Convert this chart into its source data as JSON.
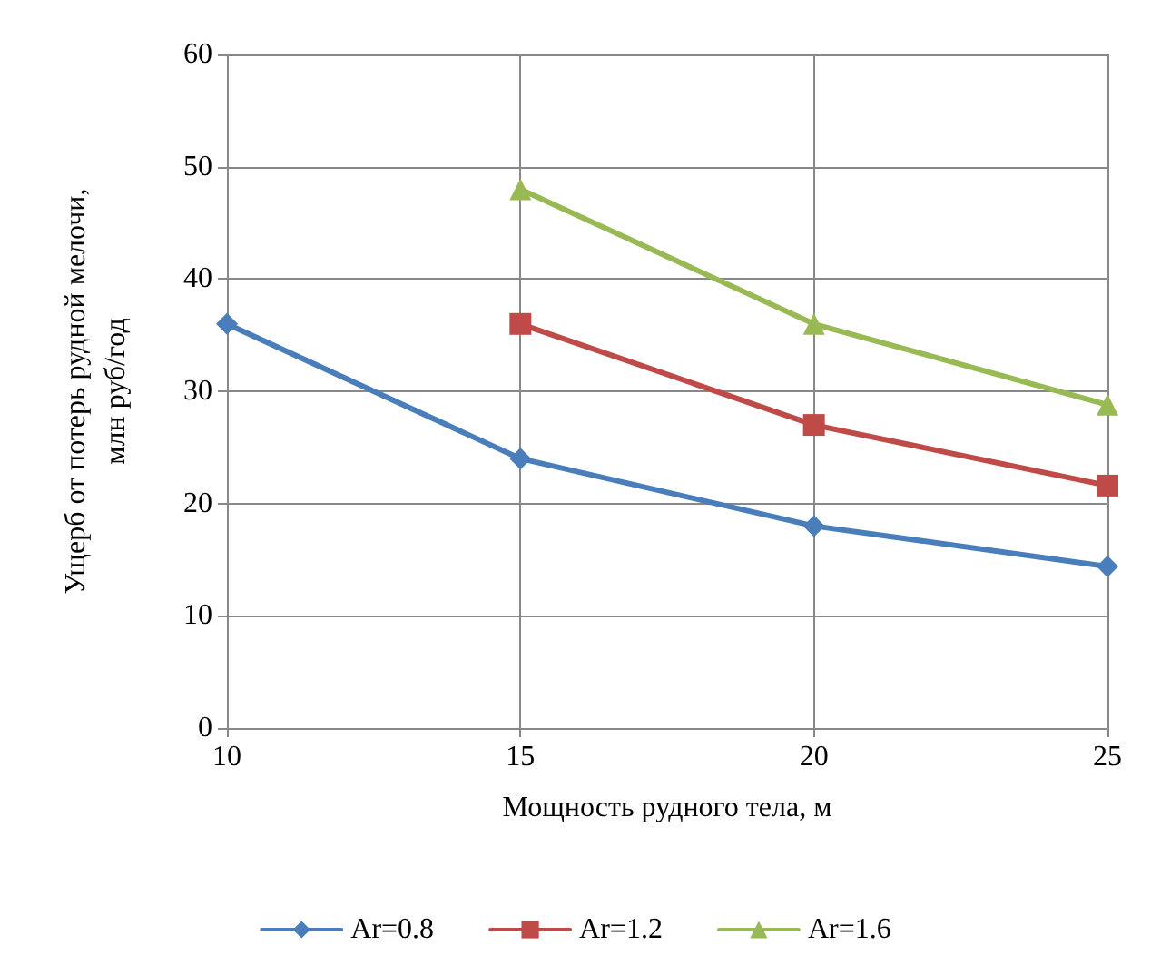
{
  "chart_data": {
    "type": "line",
    "xlabel": "Мощность рудного тела, м",
    "ylabel": "Ущерб от потерь рудной мелочи,\nмлн руб/год",
    "xlim": [
      10,
      25
    ],
    "xticks": [
      10,
      15,
      20,
      25
    ],
    "ylim": [
      0,
      60
    ],
    "yticks": [
      0,
      10,
      20,
      30,
      40,
      50,
      60
    ],
    "grid": true,
    "legend": "bottom",
    "line_style": "solid",
    "series": [
      {
        "name": "Ar=0.8",
        "color": "#4a7ebb",
        "marker": "diamond",
        "x": [
          10,
          15,
          20,
          25
        ],
        "values": [
          36,
          24,
          18,
          14.4
        ]
      },
      {
        "name": "Ar=1.2",
        "color": "#be4b48",
        "marker": "square",
        "x": [
          15,
          20,
          25
        ],
        "values": [
          36,
          27,
          21.6
        ]
      },
      {
        "name": "Ar=1.6",
        "color": "#98b954",
        "marker": "triangle",
        "x": [
          15,
          20,
          25
        ],
        "values": [
          48,
          36,
          28.8
        ]
      }
    ]
  }
}
